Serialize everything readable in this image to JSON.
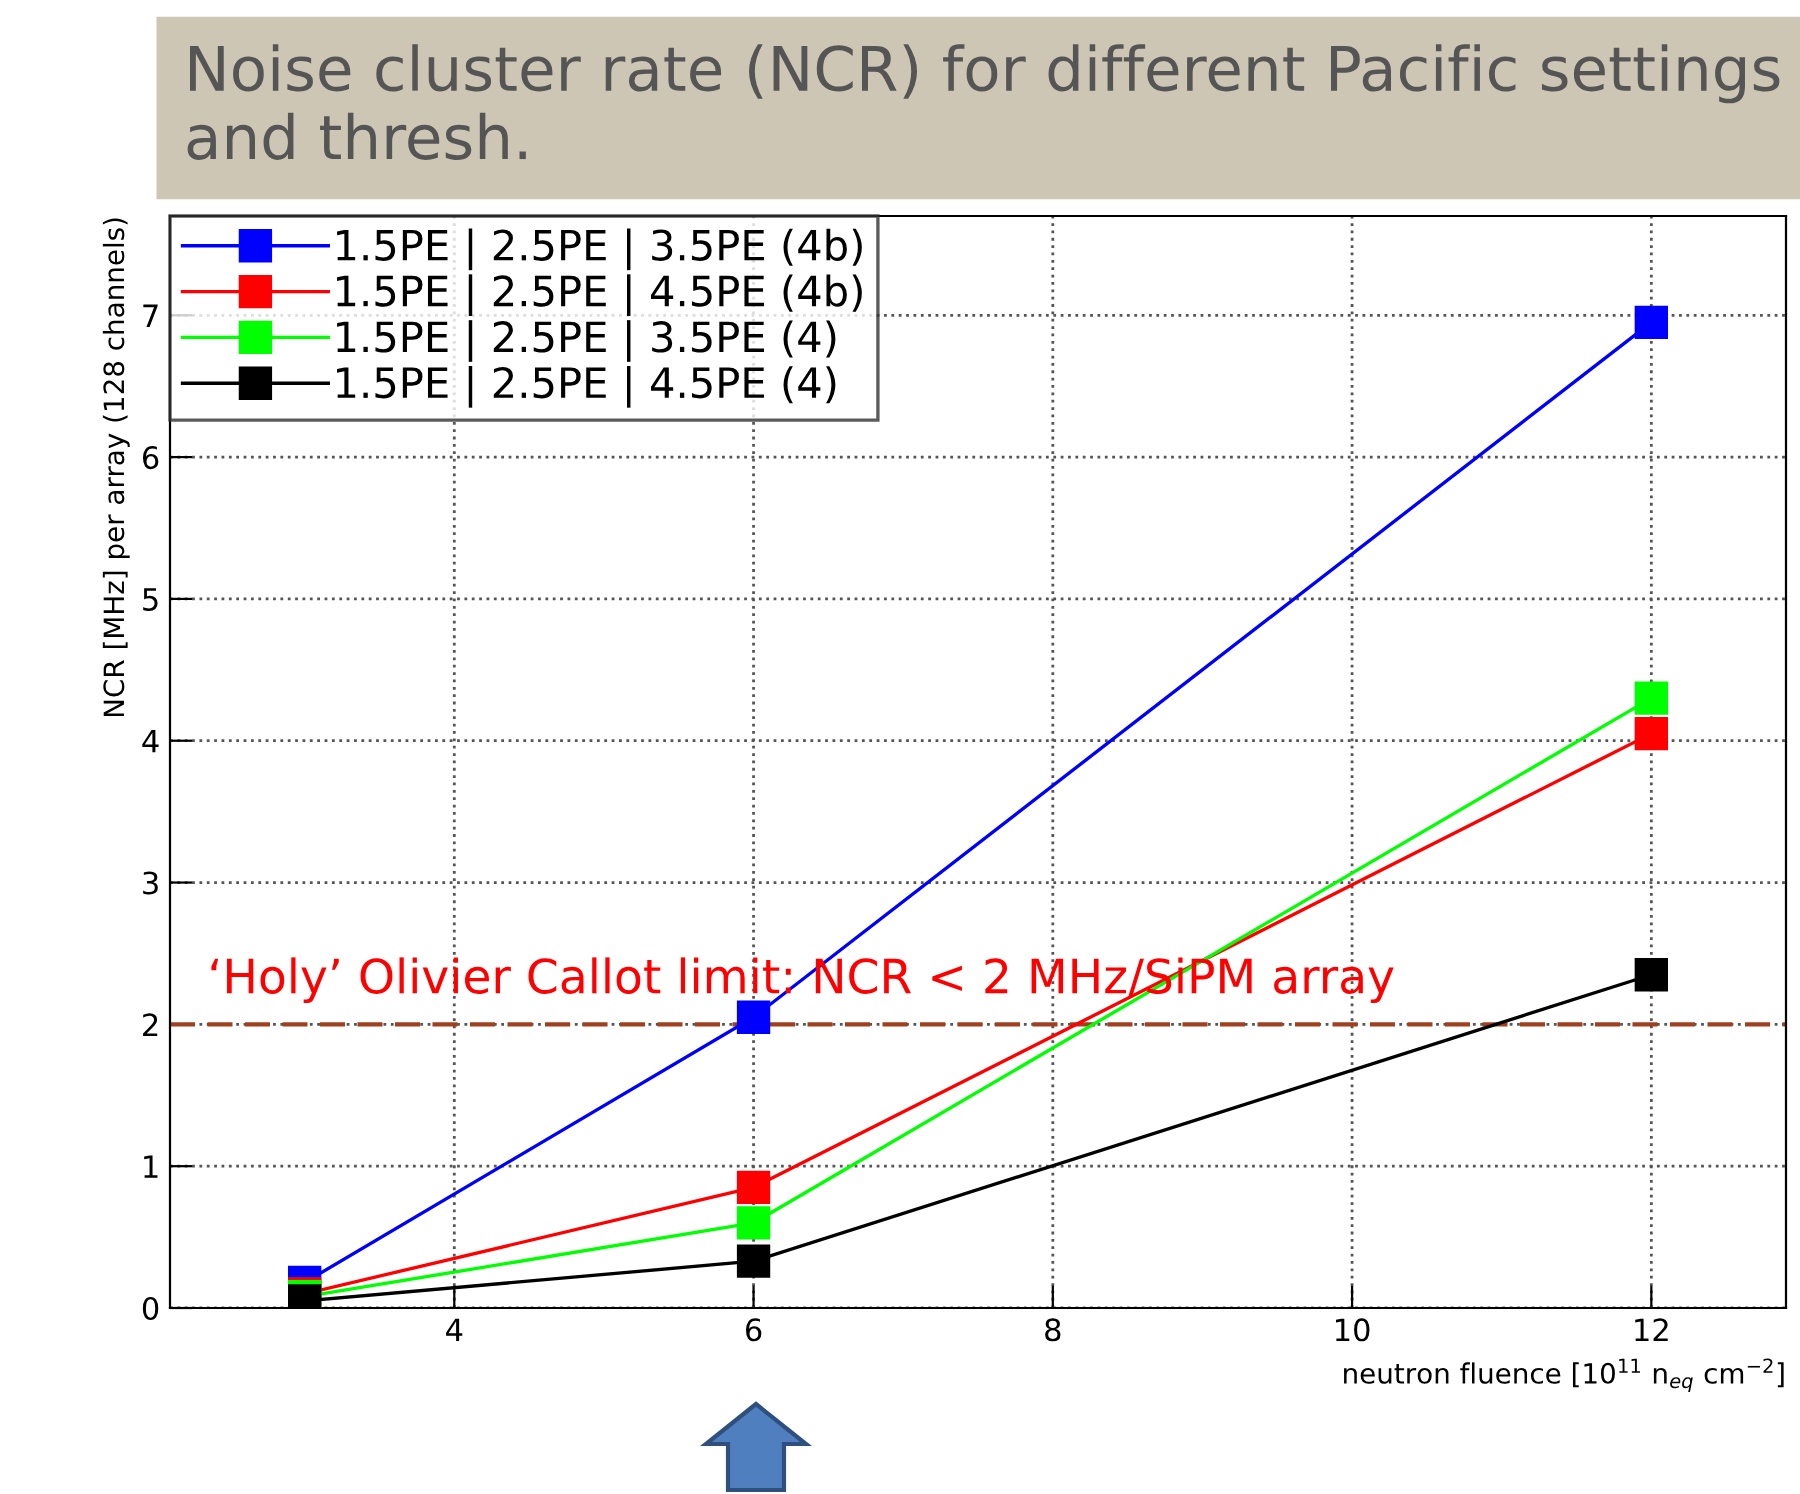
{
  "chart_data": {
    "type": "line",
    "title": "Noise cluster rate (NCR) for different Pacific settings and thresh.",
    "xlabel": "neutron fluence [10$^{11}$ n$_{eq}$ cm$^{−2}$]",
    "ylabel": "NCR [MHz] per array (128 channels)",
    "x": [
      3,
      6,
      12
    ],
    "series": [
      {
        "name": "1.5PE | 2.5PE | 3.5PE (4b)",
        "color": "#0000ff",
        "values": [
          0.18,
          2.05,
          6.95
        ]
      },
      {
        "name": "1.5PE | 2.5PE | 4.5PE (4b)",
        "color": "#ff0000",
        "values": [
          0.1,
          0.85,
          4.05
        ]
      },
      {
        "name": "1.5PE | 2.5PE | 3.5PE (4)",
        "color": "#00ff00",
        "values": [
          0.08,
          0.6,
          4.3
        ]
      },
      {
        "name": "1.5PE | 2.5PE | 4.5PE (4)",
        "color": "#000000",
        "values": [
          0.05,
          0.33,
          2.35
        ]
      }
    ],
    "xlim": [
      2.1,
      12.9
    ],
    "ylim": [
      0,
      7.7
    ],
    "xticks": [
      4,
      6,
      8,
      10,
      12
    ],
    "yticks": [
      0,
      1,
      2,
      3,
      4,
      5,
      6,
      7
    ],
    "ref_lines": [
      {
        "axis": "y",
        "value": 2,
        "label": "‘Holy’ Olivier Callot limit: NCR < 2 MHz/SiPM array",
        "color": "#a0401e",
        "line_style": "dashed"
      }
    ],
    "grid": true,
    "legend": "top left",
    "marker": "square",
    "line_style": "solid"
  }
}
